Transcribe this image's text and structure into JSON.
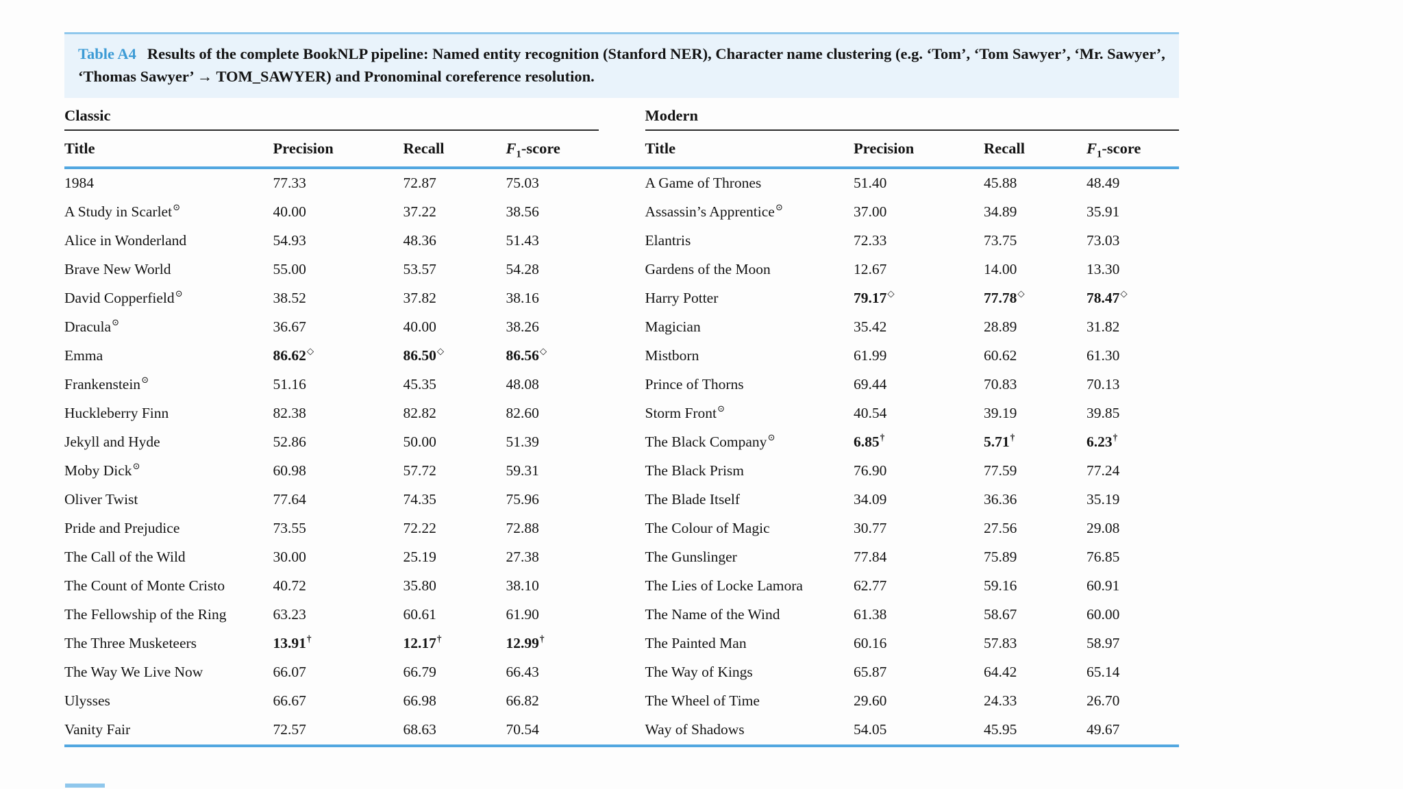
{
  "caption": {
    "label": "Table A4",
    "text": "Results of the complete BookNLP pipeline: Named entity recognition (Stanford NER), Character name clustering (e.g. ‘Tom’, ‘Tom Sawyer’, ‘Mr. Sawyer’, ‘Thomas Sawyer’ → TOM_SAWYER) and Pronominal coreference resolution."
  },
  "columns": {
    "title": "Title",
    "precision": "Precision",
    "recall": "Recall",
    "f1": {
      "main": "F",
      "sub": "1",
      "rest": "-score"
    }
  },
  "marks": {
    "title_mark_symbol": "⊙",
    "best_mark_symbol": "◇",
    "worst_mark_symbol": "†"
  },
  "colors": {
    "accent_blue": "#52a7e0",
    "caption_bg": "#e9f3fb",
    "caption_border": "#8fc7ec",
    "label_blue": "#3d9bd5"
  },
  "groups": [
    {
      "name": "Classic",
      "rows": [
        {
          "title": "1984",
          "title_mark": "",
          "precision": "77.33",
          "recall": "72.87",
          "f1": "75.03",
          "value_mark": "",
          "bold": false
        },
        {
          "title": "A Study in Scarlet",
          "title_mark": "⊙",
          "precision": "40.00",
          "recall": "37.22",
          "f1": "38.56",
          "value_mark": "",
          "bold": false
        },
        {
          "title": "Alice in Wonderland",
          "title_mark": "",
          "precision": "54.93",
          "recall": "48.36",
          "f1": "51.43",
          "value_mark": "",
          "bold": false
        },
        {
          "title": "Brave New World",
          "title_mark": "",
          "precision": "55.00",
          "recall": "53.57",
          "f1": "54.28",
          "value_mark": "",
          "bold": false
        },
        {
          "title": "David Copperfield",
          "title_mark": "⊙",
          "precision": "38.52",
          "recall": "37.82",
          "f1": "38.16",
          "value_mark": "",
          "bold": false
        },
        {
          "title": "Dracula",
          "title_mark": "⊙",
          "precision": "36.67",
          "recall": "40.00",
          "f1": "38.26",
          "value_mark": "",
          "bold": false
        },
        {
          "title": "Emma",
          "title_mark": "",
          "precision": "86.62",
          "recall": "86.50",
          "f1": "86.56",
          "value_mark": "◇",
          "bold": true
        },
        {
          "title": "Frankenstein",
          "title_mark": "⊙",
          "precision": "51.16",
          "recall": "45.35",
          "f1": "48.08",
          "value_mark": "",
          "bold": false
        },
        {
          "title": "Huckleberry Finn",
          "title_mark": "",
          "precision": "82.38",
          "recall": "82.82",
          "f1": "82.60",
          "value_mark": "",
          "bold": false
        },
        {
          "title": "Jekyll and Hyde",
          "title_mark": "",
          "precision": "52.86",
          "recall": "50.00",
          "f1": "51.39",
          "value_mark": "",
          "bold": false
        },
        {
          "title": "Moby Dick",
          "title_mark": "⊙",
          "precision": "60.98",
          "recall": "57.72",
          "f1": "59.31",
          "value_mark": "",
          "bold": false
        },
        {
          "title": "Oliver Twist",
          "title_mark": "",
          "precision": "77.64",
          "recall": "74.35",
          "f1": "75.96",
          "value_mark": "",
          "bold": false
        },
        {
          "title": "Pride and Prejudice",
          "title_mark": "",
          "precision": "73.55",
          "recall": "72.22",
          "f1": "72.88",
          "value_mark": "",
          "bold": false
        },
        {
          "title": "The Call of the Wild",
          "title_mark": "",
          "precision": "30.00",
          "recall": "25.19",
          "f1": "27.38",
          "value_mark": "",
          "bold": false
        },
        {
          "title": "The Count of Monte Cristo",
          "title_mark": "",
          "precision": "40.72",
          "recall": "35.80",
          "f1": "38.10",
          "value_mark": "",
          "bold": false
        },
        {
          "title": "The Fellowship of the Ring",
          "title_mark": "",
          "precision": "63.23",
          "recall": "60.61",
          "f1": "61.90",
          "value_mark": "",
          "bold": false
        },
        {
          "title": "The Three Musketeers",
          "title_mark": "",
          "precision": "13.91",
          "recall": "12.17",
          "f1": "12.99",
          "value_mark": "†",
          "bold": true
        },
        {
          "title": "The Way We Live Now",
          "title_mark": "",
          "precision": "66.07",
          "recall": "66.79",
          "f1": "66.43",
          "value_mark": "",
          "bold": false
        },
        {
          "title": "Ulysses",
          "title_mark": "",
          "precision": "66.67",
          "recall": "66.98",
          "f1": "66.82",
          "value_mark": "",
          "bold": false
        },
        {
          "title": "Vanity Fair",
          "title_mark": "",
          "precision": "72.57",
          "recall": "68.63",
          "f1": "70.54",
          "value_mark": "",
          "bold": false
        }
      ]
    },
    {
      "name": "Modern",
      "rows": [
        {
          "title": "A Game of Thrones",
          "title_mark": "",
          "precision": "51.40",
          "recall": "45.88",
          "f1": "48.49",
          "value_mark": "",
          "bold": false
        },
        {
          "title": "Assassin’s Apprentice",
          "title_mark": "⊙",
          "precision": "37.00",
          "recall": "34.89",
          "f1": "35.91",
          "value_mark": "",
          "bold": false
        },
        {
          "title": "Elantris",
          "title_mark": "",
          "precision": "72.33",
          "recall": "73.75",
          "f1": "73.03",
          "value_mark": "",
          "bold": false
        },
        {
          "title": "Gardens of the Moon",
          "title_mark": "",
          "precision": "12.67",
          "recall": "14.00",
          "f1": "13.30",
          "value_mark": "",
          "bold": false
        },
        {
          "title": "Harry Potter",
          "title_mark": "",
          "precision": "79.17",
          "recall": "77.78",
          "f1": "78.47",
          "value_mark": "◇",
          "bold": true
        },
        {
          "title": "Magician",
          "title_mark": "",
          "precision": "35.42",
          "recall": "28.89",
          "f1": "31.82",
          "value_mark": "",
          "bold": false
        },
        {
          "title": "Mistborn",
          "title_mark": "",
          "precision": "61.99",
          "recall": "60.62",
          "f1": "61.30",
          "value_mark": "",
          "bold": false
        },
        {
          "title": "Prince of Thorns",
          "title_mark": "",
          "precision": "69.44",
          "recall": "70.83",
          "f1": "70.13",
          "value_mark": "",
          "bold": false
        },
        {
          "title": "Storm Front",
          "title_mark": "⊙",
          "precision": "40.54",
          "recall": "39.19",
          "f1": "39.85",
          "value_mark": "",
          "bold": false
        },
        {
          "title": "The Black Company",
          "title_mark": "⊙",
          "precision": "6.85",
          "recall": "5.71",
          "f1": "6.23",
          "value_mark": "†",
          "bold": true
        },
        {
          "title": "The Black Prism",
          "title_mark": "",
          "precision": "76.90",
          "recall": "77.59",
          "f1": "77.24",
          "value_mark": "",
          "bold": false
        },
        {
          "title": "The Blade Itself",
          "title_mark": "",
          "precision": "34.09",
          "recall": "36.36",
          "f1": "35.19",
          "value_mark": "",
          "bold": false
        },
        {
          "title": "The Colour of Magic",
          "title_mark": "",
          "precision": "30.77",
          "recall": "27.56",
          "f1": "29.08",
          "value_mark": "",
          "bold": false
        },
        {
          "title": "The Gunslinger",
          "title_mark": "",
          "precision": "77.84",
          "recall": "75.89",
          "f1": "76.85",
          "value_mark": "",
          "bold": false
        },
        {
          "title": "The Lies of Locke Lamora",
          "title_mark": "",
          "precision": "62.77",
          "recall": "59.16",
          "f1": "60.91",
          "value_mark": "",
          "bold": false
        },
        {
          "title": "The Name of the Wind",
          "title_mark": "",
          "precision": "61.38",
          "recall": "58.67",
          "f1": "60.00",
          "value_mark": "",
          "bold": false
        },
        {
          "title": "The Painted Man",
          "title_mark": "",
          "precision": "60.16",
          "recall": "57.83",
          "f1": "58.97",
          "value_mark": "",
          "bold": false
        },
        {
          "title": "The Way of Kings",
          "title_mark": "",
          "precision": "65.87",
          "recall": "64.42",
          "f1": "65.14",
          "value_mark": "",
          "bold": false
        },
        {
          "title": "The Wheel of Time",
          "title_mark": "",
          "precision": "29.60",
          "recall": "24.33",
          "f1": "26.70",
          "value_mark": "",
          "bold": false
        },
        {
          "title": "Way of Shadows",
          "title_mark": "",
          "precision": "54.05",
          "recall": "45.95",
          "f1": "49.67",
          "value_mark": "",
          "bold": false
        }
      ]
    }
  ]
}
